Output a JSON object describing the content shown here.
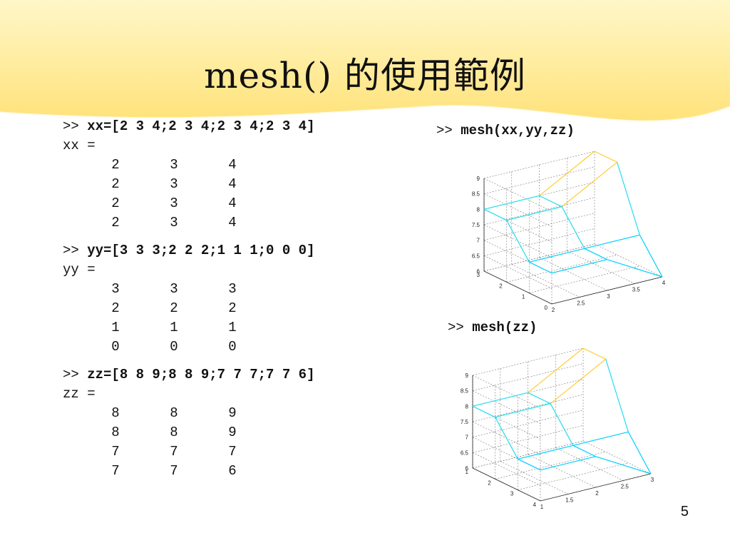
{
  "slide": {
    "title": "mesh() 的使用範例",
    "page_number": "5",
    "colors": {
      "wave_top": "#fff3b0",
      "wave_bottom": "#ffe680",
      "text": "#111111"
    }
  },
  "commands": [
    {
      "prompt": ">>",
      "command": "xx=[2 3 4;2 3 4;2 3 4;2 3 4]",
      "var_label": "xx =",
      "rows": [
        [
          "2",
          "3",
          "4"
        ],
        [
          "2",
          "3",
          "4"
        ],
        [
          "2",
          "3",
          "4"
        ],
        [
          "2",
          "3",
          "4"
        ]
      ]
    },
    {
      "prompt": ">>",
      "command": "yy=[3 3 3;2 2 2;1 1 1;0 0 0]",
      "var_label": "yy =",
      "rows": [
        [
          "3",
          "3",
          "3"
        ],
        [
          "2",
          "2",
          "2"
        ],
        [
          "1",
          "1",
          "1"
        ],
        [
          "0",
          "0",
          "0"
        ]
      ]
    },
    {
      "prompt": ">>",
      "command": "zz=[8 8 9;8 8 9;7 7 7;7 7 6]",
      "var_label": "zz =",
      "rows": [
        [
          "8",
          "8",
          "9"
        ],
        [
          "8",
          "8",
          "9"
        ],
        [
          "7",
          "7",
          "7"
        ],
        [
          "7",
          "7",
          "6"
        ]
      ]
    }
  ],
  "right": {
    "plot1_prompt": ">>",
    "plot1_command": "mesh(xx,yy,zz)",
    "plot2_prompt": ">>",
    "plot2_command": "mesh(zz)"
  },
  "chart_data": [
    {
      "type": "mesh",
      "x": [
        [
          2,
          3,
          4
        ],
        [
          2,
          3,
          4
        ],
        [
          2,
          3,
          4
        ],
        [
          2,
          3,
          4
        ]
      ],
      "y": [
        [
          3,
          3,
          3
        ],
        [
          2,
          2,
          2
        ],
        [
          1,
          1,
          1
        ],
        [
          0,
          0,
          0
        ]
      ],
      "z": [
        [
          8,
          8,
          9
        ],
        [
          8,
          8,
          9
        ],
        [
          7,
          7,
          7
        ],
        [
          7,
          7,
          6
        ]
      ],
      "x_ticks": [
        "2",
        "2.5",
        "3",
        "3.5",
        "4"
      ],
      "y_ticks": [
        "0",
        "1",
        "2",
        "3"
      ],
      "z_ticks": [
        "6",
        "6.5",
        "7",
        "7.5",
        "8",
        "8.5",
        "9"
      ],
      "xlim": [
        2,
        4
      ],
      "ylim": [
        0,
        3
      ],
      "zlim": [
        6,
        9
      ],
      "grid": true
    },
    {
      "type": "mesh",
      "x": [
        [
          1,
          2,
          3
        ],
        [
          1,
          2,
          3
        ],
        [
          1,
          2,
          3
        ],
        [
          1,
          2,
          3
        ]
      ],
      "y": [
        [
          1,
          1,
          1
        ],
        [
          2,
          2,
          2
        ],
        [
          3,
          3,
          3
        ],
        [
          4,
          4,
          4
        ]
      ],
      "z": [
        [
          8,
          8,
          9
        ],
        [
          8,
          8,
          9
        ],
        [
          7,
          7,
          7
        ],
        [
          7,
          7,
          6
        ]
      ],
      "x_ticks": [
        "1",
        "1.5",
        "2",
        "2.5",
        "3"
      ],
      "y_ticks": [
        "1",
        "2",
        "3",
        "4"
      ],
      "z_ticks": [
        "6",
        "6.5",
        "7",
        "7.5",
        "8",
        "8.5",
        "9"
      ],
      "xlim": [
        1,
        3
      ],
      "ylim": [
        1,
        4
      ],
      "zlim": [
        6,
        9
      ],
      "grid": true
    }
  ]
}
